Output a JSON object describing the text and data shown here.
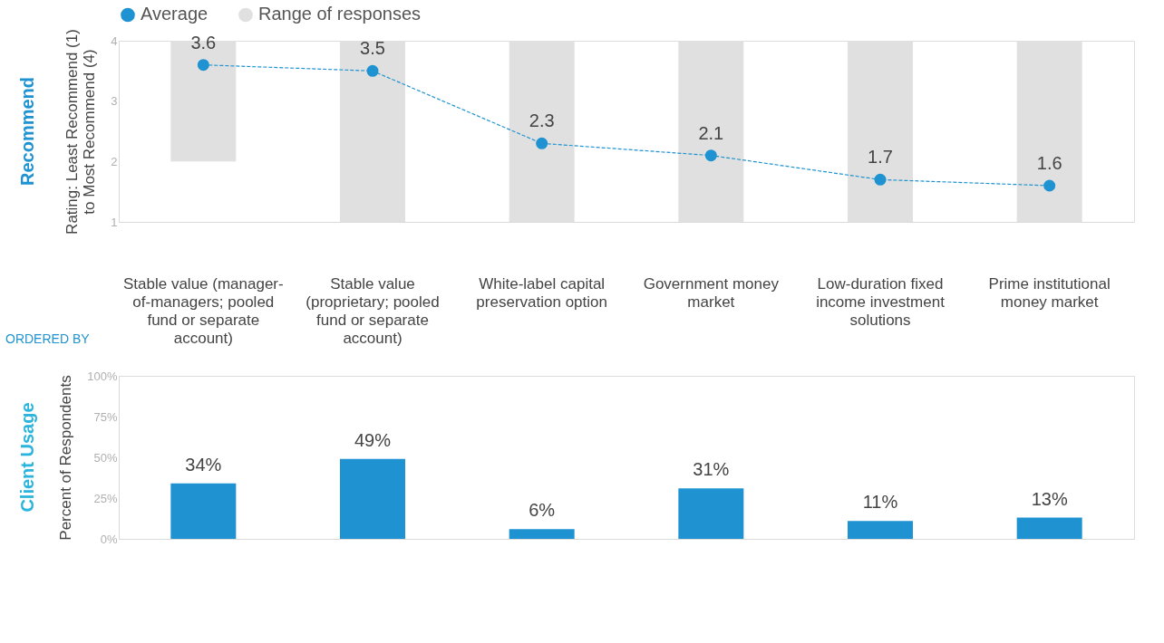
{
  "chart_data": [
    {
      "type": "bar",
      "title": "Recommend",
      "ylabel": "Rating: Least Recommend (1) to Most Recommend (4)",
      "categories": [
        "Stable value (manager-of-managers; pooled fund or separate account)",
        "Stable value (proprietary; pooled fund or separate account)",
        "White-label capital preservation option",
        "Government money market",
        "Low-duration fixed income investment solutions",
        "Prime institutional money market"
      ],
      "series": [
        {
          "name": "Average",
          "type": "line",
          "color": "#1f93d1",
          "values": [
            3.6,
            3.5,
            2.3,
            2.1,
            1.7,
            1.6
          ],
          "value_labels": [
            "3.6",
            "3.5",
            "2.3",
            "2.1",
            "1.7",
            "1.6"
          ],
          "marker": "circle",
          "line_style": "dashed"
        },
        {
          "name": "Range of responses",
          "type": "bar",
          "color": "#e0e0e0",
          "base": [
            2,
            1,
            1,
            1,
            1,
            1
          ],
          "values": [
            2,
            3,
            3,
            3,
            3,
            3
          ]
        }
      ],
      "ylim": [
        1,
        4
      ],
      "yticks": [
        1,
        2,
        3,
        4
      ],
      "grid": false,
      "legend": "top",
      "annotations": [
        "ORDERED BY"
      ]
    },
    {
      "type": "bar",
      "title": "Client Usage",
      "ylabel": "Percent of Respondents",
      "categories": [
        null,
        null,
        null,
        null,
        null,
        null
      ],
      "values": [
        34,
        49,
        6,
        31,
        11,
        13
      ],
      "color": "#1f93d1",
      "value_labels": [
        "34%",
        "49%",
        "6%",
        "31%",
        "11%",
        "13%"
      ],
      "ylim": [
        0,
        100
      ],
      "yticks": [
        {
          "value": 0,
          "label": "0%"
        },
        {
          "value": 25,
          "label": "25%"
        },
        {
          "value": 50,
          "label": "50%"
        },
        {
          "value": 75,
          "label": "75%"
        },
        {
          "value": 100,
          "label": "100%"
        }
      ],
      "grid": false,
      "tick_labels": "y"
    }
  ]
}
